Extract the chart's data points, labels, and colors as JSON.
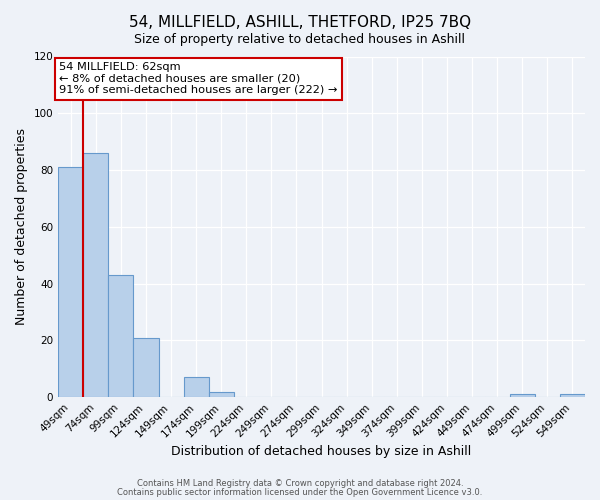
{
  "title": "54, MILLFIELD, ASHILL, THETFORD, IP25 7BQ",
  "subtitle": "Size of property relative to detached houses in Ashill",
  "xlabel": "Distribution of detached houses by size in Ashill",
  "ylabel": "Number of detached properties",
  "bar_labels": [
    "49sqm",
    "74sqm",
    "99sqm",
    "124sqm",
    "149sqm",
    "174sqm",
    "199sqm",
    "224sqm",
    "249sqm",
    "274sqm",
    "299sqm",
    "324sqm",
    "349sqm",
    "374sqm",
    "399sqm",
    "424sqm",
    "449sqm",
    "474sqm",
    "499sqm",
    "524sqm",
    "549sqm"
  ],
  "bar_values": [
    81,
    86,
    43,
    21,
    0,
    7,
    2,
    0,
    0,
    0,
    0,
    0,
    0,
    0,
    0,
    0,
    0,
    0,
    1,
    0,
    1
  ],
  "bar_color": "#b8d0ea",
  "bar_edge_color": "#6699cc",
  "vline_x": 0.5,
  "vline_color": "#cc0000",
  "annotation_title": "54 MILLFIELD: 62sqm",
  "annotation_line1": "← 8% of detached houses are smaller (20)",
  "annotation_line2": "91% of semi-detached houses are larger (222) →",
  "annotation_box_color": "#cc0000",
  "ylim": [
    0,
    120
  ],
  "yticks": [
    0,
    20,
    40,
    60,
    80,
    100,
    120
  ],
  "footer1": "Contains HM Land Registry data © Crown copyright and database right 2024.",
  "footer2": "Contains public sector information licensed under the Open Government Licence v3.0.",
  "bg_color": "#eef2f8",
  "plot_bg_color": "#eef2f8"
}
